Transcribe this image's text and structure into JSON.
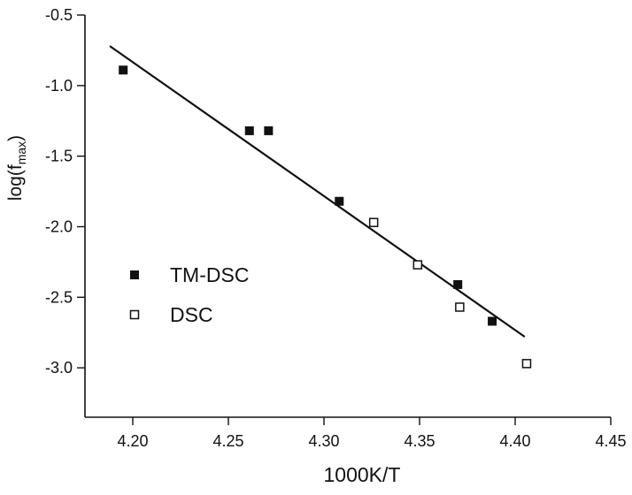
{
  "chart_data": {
    "type": "scatter",
    "title": "",
    "xlabel": "1000K/T",
    "ylabel_main": "log(f",
    "ylabel_sub": "max",
    "ylabel_close": ")",
    "xlim": [
      4.175,
      4.45
    ],
    "ylim": [
      -3.35,
      -0.5
    ],
    "xticks": [
      4.2,
      4.25,
      4.3,
      4.35,
      4.4,
      4.45
    ],
    "xtick_labels": [
      "4.20",
      "4.25",
      "4.30",
      "4.35",
      "4.40",
      "4.45"
    ],
    "yticks": [
      -0.5,
      -1.0,
      -1.5,
      -2.0,
      -2.5,
      -3.0
    ],
    "ytick_labels": [
      "-0.5",
      "-1.0",
      "-1.5",
      "-2.0",
      "-2.5",
      "-3.0"
    ],
    "grid": false,
    "legend_position": "lower-left",
    "series": [
      {
        "name": "TM-DSC",
        "marker": "filled-square",
        "color": "#111111",
        "points": [
          {
            "x": 4.195,
            "y": -0.89
          },
          {
            "x": 4.261,
            "y": -1.32
          },
          {
            "x": 4.271,
            "y": -1.32
          },
          {
            "x": 4.308,
            "y": -1.82
          },
          {
            "x": 4.37,
            "y": -2.41
          },
          {
            "x": 4.388,
            "y": -2.67
          }
        ]
      },
      {
        "name": "DSC",
        "marker": "open-square",
        "color": "#111111",
        "points": [
          {
            "x": 4.326,
            "y": -1.97
          },
          {
            "x": 4.349,
            "y": -2.27
          },
          {
            "x": 4.371,
            "y": -2.57
          },
          {
            "x": 4.406,
            "y": -2.97
          }
        ]
      }
    ],
    "fit_line": {
      "x1": 4.188,
      "y1": -0.72,
      "x2": 4.405,
      "y2": -2.78
    }
  }
}
